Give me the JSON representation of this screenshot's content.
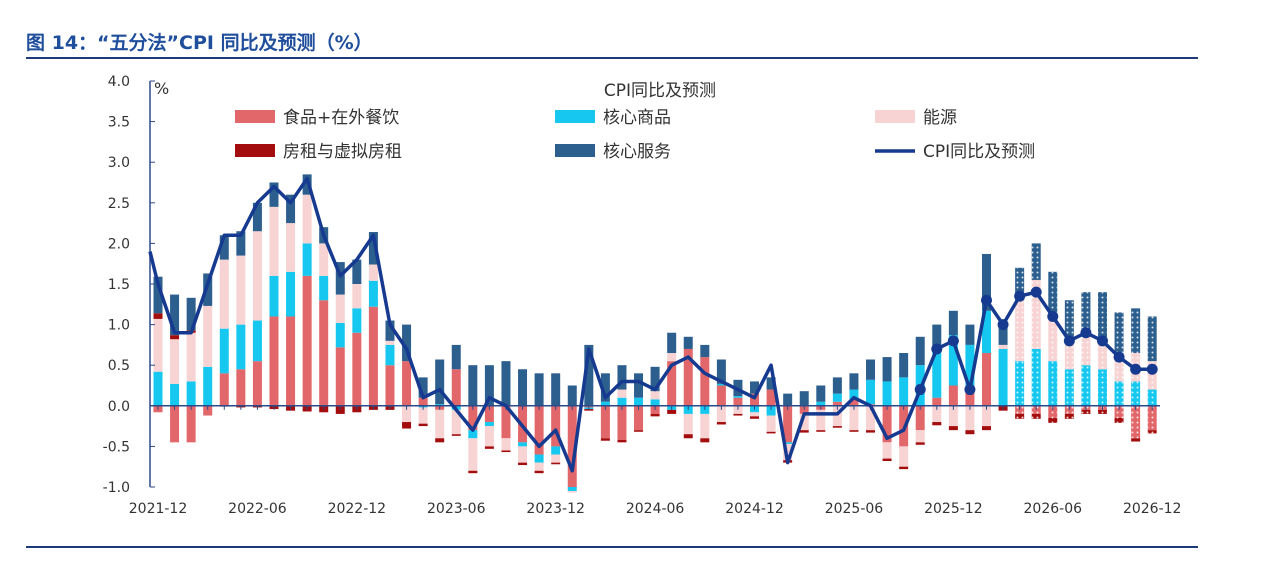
{
  "title": "图 14：“五分法”CPI 同比及预测（%）",
  "chart_data": {
    "type": "bar",
    "title": "CPI同比及预测",
    "ylabel": "%",
    "ylim": [
      -1.0,
      4.0
    ],
    "yticks": [
      "4.0",
      "3.5",
      "3.0",
      "2.5",
      "2.0",
      "1.5",
      "1.0",
      "0.5",
      "0.0",
      "-0.5",
      "-1.0"
    ],
    "xtick_labels": [
      "2021-12",
      "2022-06",
      "2022-12",
      "2023-06",
      "2023-12",
      "2024-06",
      "2024-12",
      "2025-06",
      "2025-12",
      "2026-06",
      "2026-12"
    ],
    "x_start": "2021-12",
    "x_end": "2026-12",
    "forecast_markers_from": "2025-10",
    "legend_position": "top",
    "grid": false,
    "series": [
      {
        "name": "食品+在外餐饮",
        "kind": "bar",
        "color": "#e2676a",
        "values": [
          -0.08,
          -0.45,
          -0.45,
          -0.12,
          0.4,
          0.45,
          0.55,
          1.1,
          1.1,
          1.6,
          1.3,
          0.72,
          0.9,
          1.22,
          0.5,
          0.55,
          0.1,
          -0.05,
          0.45,
          -0.3,
          -0.2,
          -0.4,
          -0.45,
          -0.6,
          -0.5,
          -1.0,
          -0.02,
          -0.4,
          -0.42,
          -0.3,
          -0.1,
          0.55,
          0.7,
          0.6,
          0.25,
          0.1,
          0.15,
          0.2,
          -0.45,
          -0.1,
          -0.05,
          0.05,
          0.08,
          0.02,
          -0.45,
          -0.5,
          -0.3,
          0.1,
          0.25,
          0.25,
          0.65,
          0,
          -0.1,
          -0.1,
          -0.15,
          -0.1,
          -0.05,
          -0.05,
          -0.15,
          -0.4,
          -0.3
        ]
      },
      {
        "name": "核心商品",
        "kind": "bar",
        "color": "#16c8f0",
        "values": [
          0.42,
          0.27,
          0.3,
          0.48,
          0.55,
          0.55,
          0.5,
          0.5,
          0.55,
          0.4,
          0.3,
          0.3,
          0.3,
          0.32,
          0.25,
          0,
          -0.02,
          0.02,
          -0.05,
          -0.1,
          -0.05,
          0,
          -0.05,
          -0.1,
          -0.1,
          -0.05,
          -0.02,
          0.05,
          0.1,
          0.1,
          0.08,
          -0.05,
          -0.1,
          -0.1,
          0.02,
          0.02,
          -0.08,
          -0.12,
          -0.02,
          0,
          0.05,
          0.1,
          0.12,
          0.3,
          0.3,
          0.35,
          0.5,
          0.6,
          0.62,
          0.5,
          0.52,
          0.7,
          0.55,
          0.7,
          0.55,
          0.45,
          0.5,
          0.45,
          0.3,
          0.3,
          0.2
        ]
      },
      {
        "name": "能源",
        "kind": "bar",
        "color": "#f7d3d3",
        "values": [
          0.65,
          0.55,
          0.6,
          0.75,
          0.85,
          0.85,
          1.1,
          0.85,
          0.6,
          0.6,
          0.4,
          0.35,
          0.3,
          0.2,
          0.05,
          -0.2,
          -0.2,
          -0.35,
          -0.3,
          -0.4,
          -0.25,
          -0.15,
          -0.2,
          -0.1,
          -0.1,
          -0.02,
          0,
          0,
          0.1,
          0,
          0.1,
          0.1,
          -0.25,
          -0.3,
          -0.2,
          -0.1,
          -0.05,
          -0.2,
          -0.2,
          -0.2,
          -0.25,
          -0.25,
          -0.3,
          -0.3,
          -0.2,
          -0.25,
          -0.15,
          -0.2,
          -0.25,
          -0.3,
          -0.25,
          0.05,
          0.75,
          0.85,
          0.55,
          0.35,
          0.35,
          0.35,
          0.3,
          0.35,
          0.35
        ]
      },
      {
        "name": "房租与虚拟房租",
        "kind": "bar",
        "color": "#a30d0d",
        "values": [
          0.07,
          0.05,
          0.03,
          0,
          -0.01,
          -0.02,
          -0.02,
          -0.04,
          -0.06,
          -0.07,
          -0.08,
          -0.1,
          -0.08,
          -0.05,
          -0.05,
          -0.08,
          -0.03,
          -0.05,
          -0.02,
          -0.03,
          -0.03,
          -0.02,
          -0.03,
          -0.03,
          -0.02,
          0,
          -0.02,
          -0.03,
          -0.03,
          -0.02,
          -0.03,
          -0.05,
          -0.05,
          -0.05,
          -0.03,
          -0.02,
          -0.03,
          -0.02,
          -0.03,
          -0.03,
          -0.02,
          -0.02,
          -0.02,
          -0.03,
          -0.03,
          -0.03,
          -0.03,
          -0.04,
          -0.05,
          -0.05,
          -0.05,
          -0.06,
          -0.06,
          -0.06,
          -0.06,
          -0.06,
          -0.05,
          -0.05,
          -0.06,
          -0.04,
          -0.04
        ]
      },
      {
        "name": "核心服务",
        "kind": "bar",
        "color": "#2d5f8e",
        "values": [
          0.45,
          0.5,
          0.4,
          0.4,
          0.3,
          0.3,
          0.35,
          0.3,
          0.35,
          0.25,
          0.2,
          0.4,
          0.3,
          0.4,
          0.25,
          0.45,
          0.25,
          0.55,
          0.3,
          0.5,
          0.5,
          0.55,
          0.45,
          0.4,
          0.4,
          0.25,
          0.75,
          0.35,
          0.3,
          0.3,
          0.3,
          0.25,
          0.15,
          0.15,
          0.3,
          0.2,
          0.15,
          0.15,
          0.15,
          0.18,
          0.2,
          0.2,
          0.2,
          0.25,
          0.3,
          0.3,
          0.35,
          0.3,
          0.3,
          0.25,
          0.7,
          0.25,
          0.4,
          0.45,
          0.55,
          0.5,
          0.55,
          0.6,
          0.55,
          0.55,
          0.55
        ]
      },
      {
        "name": "CPI同比及预测",
        "kind": "line",
        "color": "#163a8f",
        "values": [
          1.5,
          0.9,
          0.9,
          1.5,
          2.1,
          2.1,
          2.5,
          2.7,
          2.5,
          2.8,
          2.1,
          1.6,
          1.8,
          2.1,
          1.0,
          0.7,
          0.1,
          0.2,
          -0.05,
          -0.3,
          0.1,
          0.0,
          -0.25,
          -0.5,
          -0.3,
          -0.8,
          0.7,
          0.1,
          0.3,
          0.3,
          0.2,
          0.5,
          0.6,
          0.4,
          0.3,
          0.2,
          0.1,
          0.5,
          -0.7,
          -0.1,
          -0.1,
          -0.1,
          0.1,
          0.0,
          -0.4,
          -0.3,
          0.2,
          0.7,
          0.8,
          0.2,
          1.3,
          1.0,
          1.35,
          1.4,
          1.1,
          0.8,
          0.9,
          0.8,
          0.6,
          0.45,
          0.45
        ]
      }
    ]
  }
}
